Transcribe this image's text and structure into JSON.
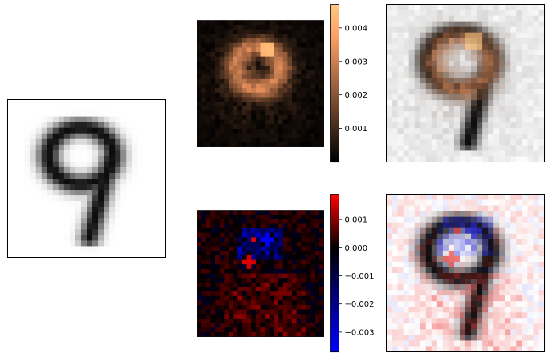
{
  "chart_data": [
    {
      "type": "heatmap",
      "panel": "input-digit",
      "description_label": "",
      "colormap": "gray_r",
      "grid_size": [
        28,
        28
      ]
    },
    {
      "type": "heatmap",
      "panel": "saliency-positive",
      "colormap": "copper",
      "colorbar": {
        "range": [
          0.0,
          0.0047
        ],
        "ticks": [
          "0.001",
          "0.002",
          "0.003",
          "0.004"
        ],
        "tick_values": [
          0.001,
          0.002,
          0.003,
          0.004
        ]
      },
      "grid_size": [
        28,
        28
      ]
    },
    {
      "type": "heatmap",
      "panel": "overlay-positive",
      "colormap": "gray_r + copper overlay",
      "grid_size": [
        28,
        28
      ]
    },
    {
      "type": "heatmap",
      "panel": "saliency-signed",
      "colormap": "blue-black-red",
      "colorbar": {
        "range": [
          -0.0037,
          0.0019
        ],
        "ticks": [
          "0.001",
          "0.000",
          "−0.001",
          "−0.002",
          "−0.003"
        ],
        "tick_values": [
          0.001,
          0.0,
          -0.001,
          -0.002,
          -0.003
        ]
      },
      "grid_size": [
        28,
        28
      ]
    },
    {
      "type": "heatmap",
      "panel": "overlay-signed",
      "colormap": "gray_r + blue-black-red overlay",
      "grid_size": [
        28,
        28
      ]
    }
  ]
}
